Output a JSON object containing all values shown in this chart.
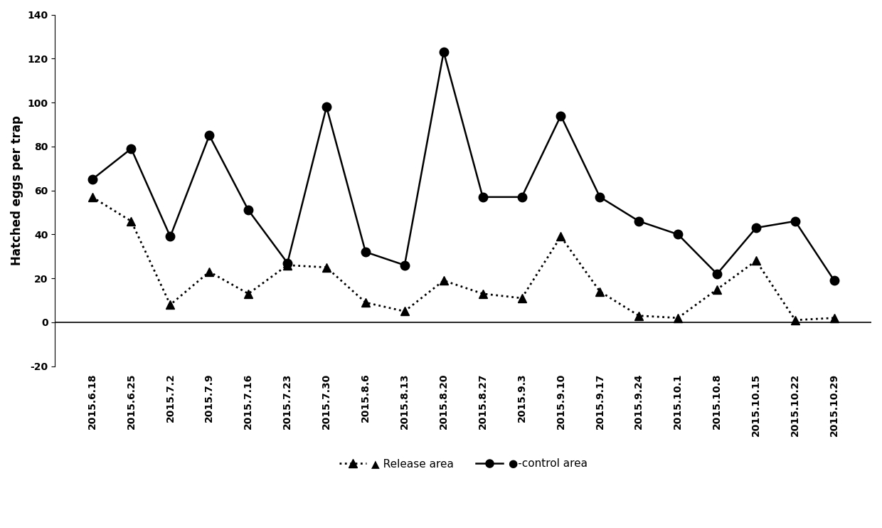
{
  "dates": [
    "2015.6.18",
    "2015.6.25",
    "2015.7.2",
    "2015.7.9",
    "2015.7.16",
    "2015.7.23",
    "2015.7.30",
    "2015.8.6",
    "2015.8.13",
    "2015.8.20",
    "2015.8.27",
    "2015.9.3",
    "2015.9.10",
    "2015.9.17",
    "2015.9.24",
    "2015.10.1",
    "2015.10.8",
    "2015.10.15",
    "2015.10.22",
    "2015.10.29"
  ],
  "release_area": [
    57,
    46,
    8,
    23,
    13,
    26,
    25,
    9,
    5,
    19,
    13,
    11,
    39,
    14,
    3,
    2,
    15,
    28,
    1,
    2
  ],
  "control_area": [
    65,
    79,
    39,
    85,
    51,
    27,
    98,
    32,
    26,
    123,
    57,
    57,
    94,
    57,
    46,
    40,
    22,
    43,
    46,
    19
  ],
  "ylabel": "Hatched eggs per trap",
  "ylim": [
    -20,
    140
  ],
  "yticks": [
    -20,
    0,
    20,
    40,
    60,
    80,
    100,
    120,
    140
  ],
  "release_label": "Release area",
  "control_label": "control area",
  "release_color": "#000000",
  "control_color": "#000000",
  "bg_color": "#ffffff"
}
